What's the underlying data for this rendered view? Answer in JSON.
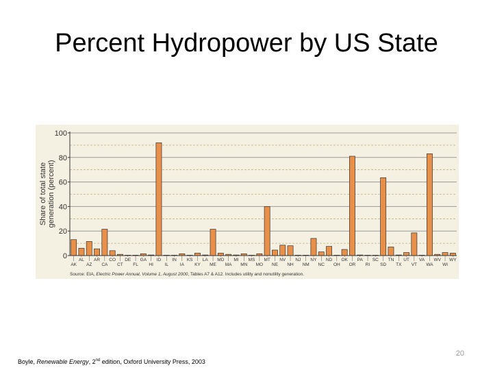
{
  "slide": {
    "title": "Percent Hydropower by US State",
    "slide_number": "20",
    "citation": {
      "author": "Boyle, ",
      "book": "Renewable Energy",
      "edition_pre": ", 2",
      "edition_sup": "nd",
      "edition_post": " edition, Oxford University Press, 2003"
    }
  },
  "chart_data": {
    "type": "bar",
    "ylabel_line1": "Share of total state",
    "ylabel_line2": "generation (percent)",
    "ylim": [
      0,
      100
    ],
    "yticks": [
      "0",
      "20",
      "40",
      "60",
      "80",
      "100"
    ],
    "grid": true,
    "source": "Source: EIA, ",
    "source_italic": "Electric Power Annual, Volume 1, August 2000",
    "source_rest": ", Tables A7 & A12. Includes utility and nonutility generation.",
    "bar_color": "#e8904a",
    "background": "#f4f0e2",
    "categories": [
      "AK",
      "AL",
      "AZ",
      "AR",
      "CA",
      "CO",
      "CT",
      "DE",
      "FL",
      "GA",
      "HI",
      "ID",
      "IL",
      "IN",
      "IA",
      "KS",
      "KY",
      "LA",
      "ME",
      "MD",
      "MA",
      "MI",
      "MN",
      "MS",
      "MO",
      "MT",
      "NE",
      "NV",
      "NH",
      "NJ",
      "NM",
      "NY",
      "NC",
      "ND",
      "OH",
      "OK",
      "OR",
      "PA",
      "RI",
      "SC",
      "SD",
      "TN",
      "TX",
      "UT",
      "VT",
      "VA",
      "WA",
      "WV",
      "WI",
      "WY"
    ],
    "values": [
      13,
      6,
      11.5,
      5.5,
      21.5,
      4,
      1,
      0,
      0,
      1.5,
      0.5,
      92,
      0.2,
      0.2,
      1.5,
      0,
      2,
      0.5,
      21.5,
      2,
      1,
      0.5,
      1.5,
      0,
      1.5,
      40,
      4.5,
      8.5,
      8,
      0,
      0.3,
      14,
      3,
      7.5,
      0.2,
      5,
      81,
      0.5,
      0,
      0.2,
      63.5,
      7,
      0.5,
      2.5,
      18.5,
      0.2,
      83,
      1,
      2.5,
      2
    ]
  }
}
